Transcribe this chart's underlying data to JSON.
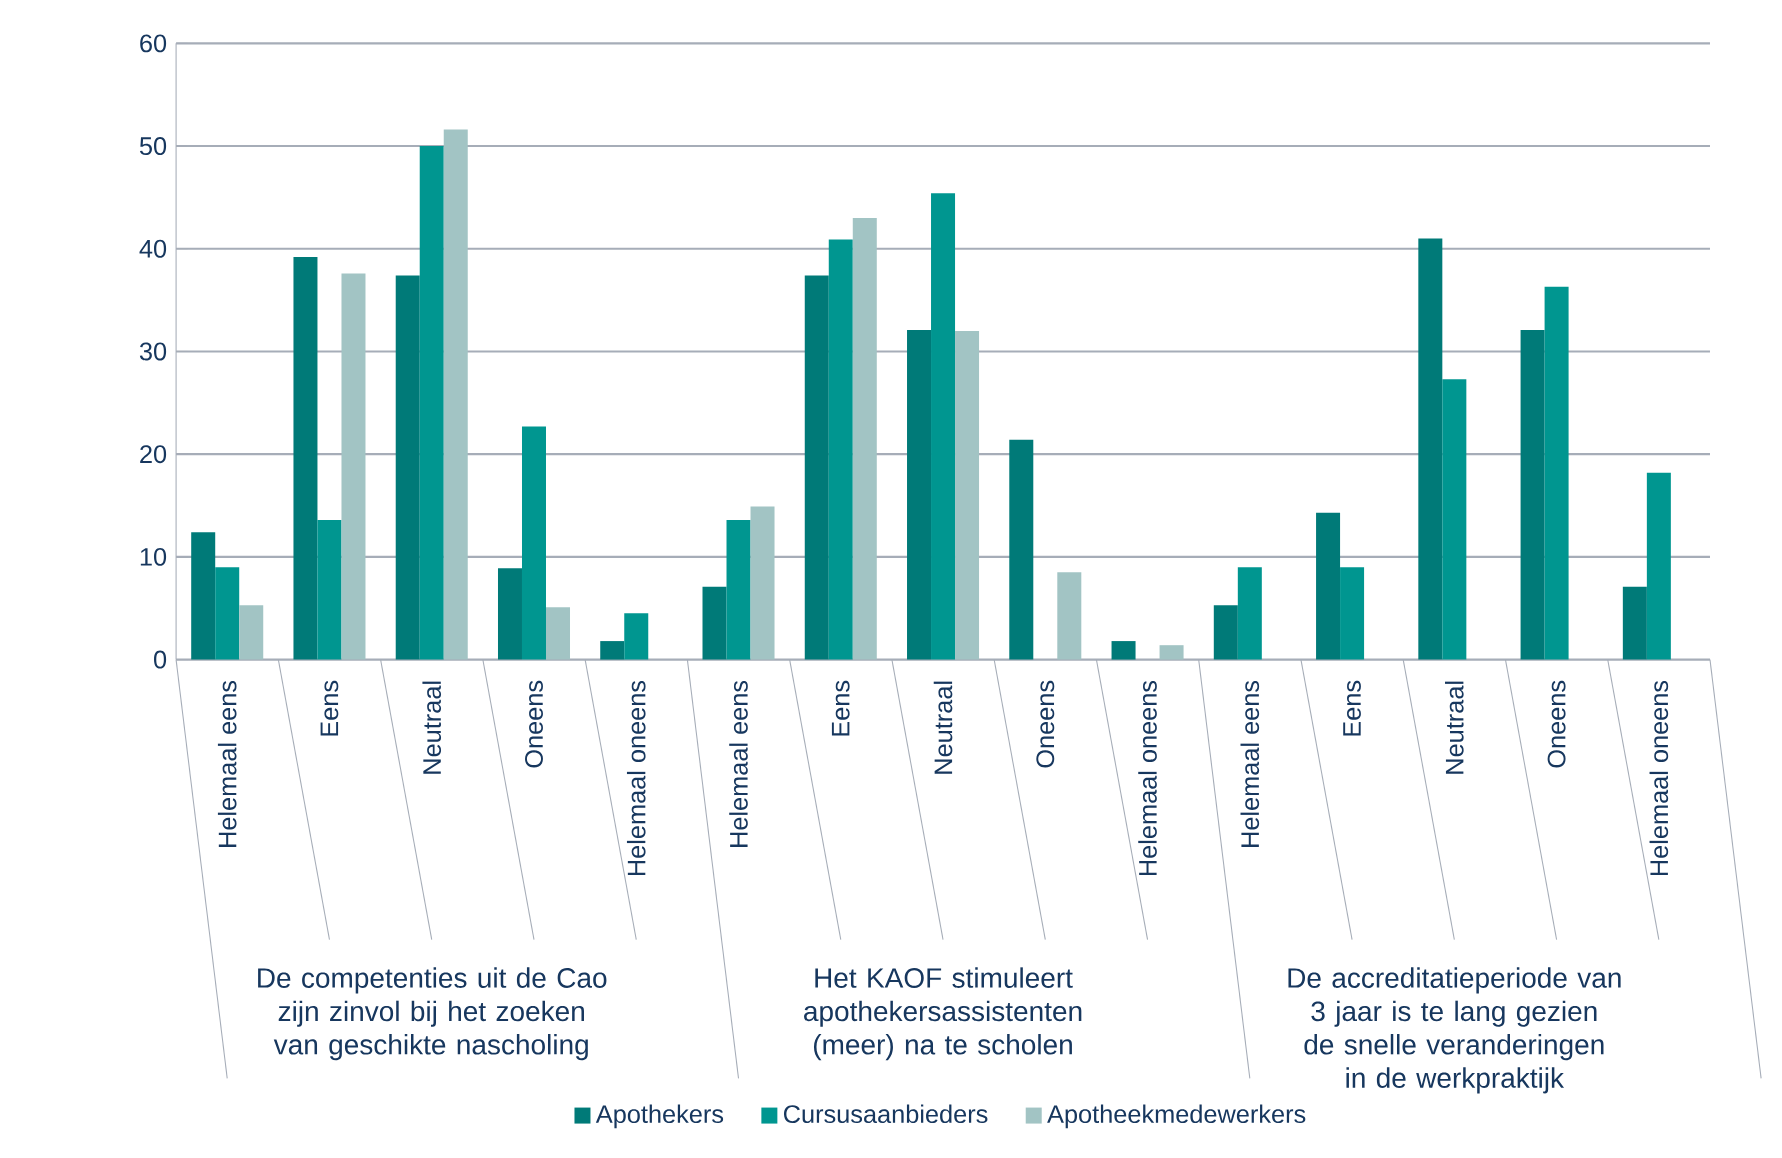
{
  "chart_data": {
    "type": "bar",
    "categories": [
      "Helemaal eens",
      "Eens",
      "Neutraal",
      "Oneens",
      "Helemaal oneens",
      "Helemaal eens",
      "Eens",
      "Neutraal",
      "Oneens",
      "Helemaal oneens",
      "Helemaal eens",
      "Eens",
      "Neutraal",
      "Oneens",
      "Helemaal oneens"
    ],
    "series": [
      {
        "name": "Apothekers",
        "color": "#007a78",
        "values": [
          12.4,
          39.2,
          37.4,
          8.9,
          1.8,
          7.1,
          37.4,
          32.1,
          21.4,
          1.8,
          5.3,
          14.3,
          41.0,
          32.1,
          7.1
        ]
      },
      {
        "name": "Cursusaanbieders",
        "color": "#009690",
        "values": [
          9.0,
          13.6,
          50.0,
          22.7,
          4.5,
          13.6,
          40.9,
          45.4,
          null,
          null,
          9.0,
          9.0,
          27.3,
          36.3,
          18.2
        ]
      },
      {
        "name": "Apotheekmedewerkers",
        "color": "#a2c4c4",
        "values": [
          5.3,
          37.6,
          51.6,
          5.1,
          null,
          14.9,
          43.0,
          32.0,
          8.5,
          1.4,
          null,
          null,
          null,
          null,
          null
        ]
      }
    ],
    "annotations": [
      "De competenties uit de Cao zijn zinvol bij het zoeken van geschikte nascholing",
      "Het KAOF stimuleert apothekersassistenten (meer) na te scholen",
      "De accreditatieperiode van 3 jaar is te lang gezien de snelle veranderingen in de werkpraktijk"
    ],
    "ylim": [
      0,
      60
    ],
    "yticks": [
      0,
      10,
      20,
      30,
      40,
      50,
      60
    ],
    "grid": "y",
    "legend": "bottom"
  }
}
